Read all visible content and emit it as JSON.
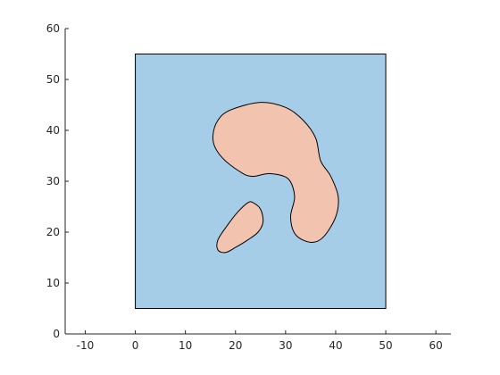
{
  "chart_data": {
    "type": "area",
    "title": "",
    "xlabel": "",
    "ylabel": "",
    "xlim": [
      -14,
      63
    ],
    "ylim": [
      0,
      60
    ],
    "xticks": [
      -10,
      0,
      10,
      20,
      30,
      40,
      50,
      60
    ],
    "yticks": [
      0,
      10,
      20,
      30,
      40,
      50,
      60
    ],
    "xtick_labels": [
      "-10",
      "0",
      "10",
      "20",
      "30",
      "40",
      "50",
      "60"
    ],
    "ytick_labels": [
      "0",
      "10",
      "20",
      "30",
      "40",
      "50",
      "60"
    ],
    "grid": false,
    "box": "left-bottom axes only",
    "regions": [
      {
        "id": "square",
        "fill": "#a6cde8",
        "stroke": "#000000",
        "x": [
          0,
          50,
          50,
          0
        ],
        "y": [
          5,
          5,
          55,
          55
        ]
      },
      {
        "id": "large-blob",
        "fill": "#f2c4b0",
        "stroke": "#000000",
        "x": [
          19,
          25,
          30,
          33.5,
          36,
          37,
          39,
          40.5,
          40,
          37.5,
          35,
          32,
          31,
          31.8,
          30.5,
          27,
          24,
          23,
          21.5,
          18,
          16,
          15.5,
          16.5,
          19
        ],
        "y": [
          44,
          45.5,
          44.5,
          42,
          38.5,
          34,
          31,
          27,
          23,
          19,
          18,
          19.5,
          23,
          27,
          30.5,
          31.5,
          31,
          31,
          31.5,
          34,
          36.5,
          39,
          42,
          44
        ],
        "smooth": true
      },
      {
        "id": "small-blob",
        "fill": "#f2c4b0",
        "stroke": "#000000",
        "x": [
          23.5,
          25,
          25.5,
          24.5,
          22.5,
          20,
          18,
          16.5,
          16.5,
          18.5,
          20.5,
          22.5,
          23.5
        ],
        "y": [
          25.8,
          24.5,
          22,
          20,
          18.5,
          17,
          16,
          16.5,
          18.5,
          21.5,
          24,
          25.8,
          25.8
        ],
        "smooth": true
      }
    ]
  }
}
